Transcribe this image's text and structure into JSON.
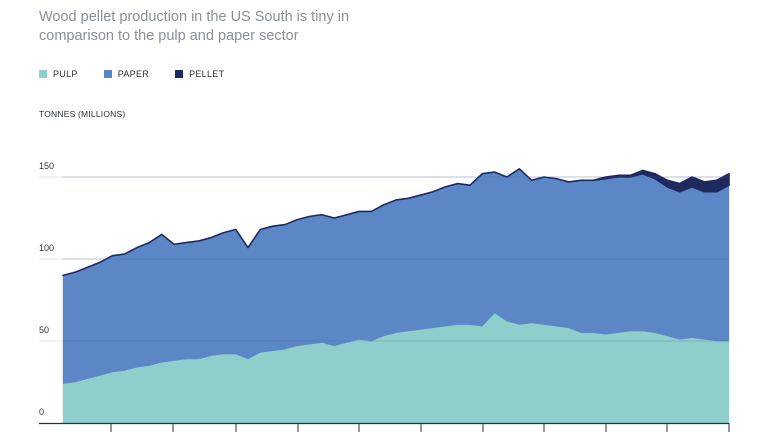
{
  "header": {
    "subtitle": "Wood pellet production in the US South is tiny in comparison to the pulp and paper sector"
  },
  "legend": [
    {
      "label": "PULP",
      "color": "#8ecfcb"
    },
    {
      "label": "PAPER",
      "color": "#5c87c7"
    },
    {
      "label": "PELLET",
      "color": "#1e2a5e"
    }
  ],
  "chart_data": {
    "type": "area",
    "stacked": true,
    "ylabel": "TONNES (MILLIONS)",
    "ylim": [
      0,
      200
    ],
    "yticks": [
      0,
      50,
      100,
      150
    ],
    "grid": true,
    "legend_position": "top-left",
    "x": [
      1,
      2,
      3,
      4,
      5,
      6,
      7,
      8,
      9,
      10,
      11,
      12,
      13,
      14,
      15,
      16,
      17,
      18,
      19,
      20,
      21,
      22,
      23,
      24,
      25,
      26,
      27,
      28,
      29,
      30,
      31,
      32,
      33,
      34,
      35,
      36,
      37,
      38,
      39,
      40,
      41,
      42,
      43,
      44,
      45,
      46,
      47,
      48,
      49,
      50,
      51,
      52,
      53,
      54,
      55
    ],
    "series": [
      {
        "name": "PULP",
        "color": "#8ecfcb",
        "values": [
          24,
          25,
          27,
          29,
          31,
          32,
          34,
          35,
          37,
          38,
          39,
          39,
          41,
          42,
          42,
          39,
          43,
          44,
          45,
          47,
          48,
          49,
          47,
          49,
          51,
          50,
          53,
          55,
          56,
          57,
          58,
          59,
          60,
          60,
          59,
          67,
          62,
          60,
          61,
          60,
          59,
          58,
          55,
          55,
          54,
          55,
          56,
          56,
          55,
          53,
          51,
          52,
          51,
          50,
          50
        ]
      },
      {
        "name": "PAPER",
        "values": [
          66,
          67,
          68,
          69,
          71,
          71,
          73,
          75,
          78,
          71,
          71,
          72,
          72,
          74,
          76,
          68,
          75,
          76,
          76,
          77,
          78,
          78,
          78,
          78,
          78,
          79,
          80,
          81,
          81,
          82,
          83,
          85,
          86,
          85,
          93,
          86,
          88,
          95,
          87,
          90,
          90,
          89,
          93,
          93,
          95,
          95,
          94,
          96,
          94,
          91,
          90,
          92,
          90,
          91,
          95
        ],
        "color": "#5c87c7"
      },
      {
        "name": "PELLET",
        "color": "#1e2a5e",
        "values": [
          0,
          0,
          0,
          0,
          0,
          0,
          0,
          0,
          0,
          0,
          0,
          0,
          0,
          0,
          0,
          0,
          0,
          0,
          0,
          0,
          0,
          0,
          0,
          0,
          0,
          0,
          0,
          0,
          0,
          0,
          0,
          0,
          0,
          0,
          0,
          0,
          0,
          0,
          0,
          0,
          0,
          0,
          0,
          0,
          1,
          1,
          1,
          2,
          3,
          4,
          5,
          6,
          6,
          7,
          7
        ]
      }
    ]
  }
}
